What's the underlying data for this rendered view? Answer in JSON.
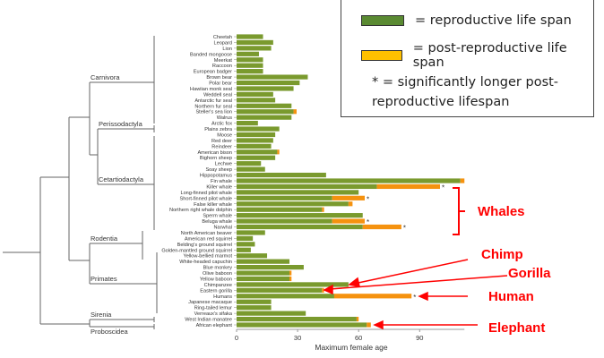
{
  "chart_data": {
    "type": "bar",
    "orientation": "horizontal",
    "stacked": true,
    "xlabel": "Maximum female age",
    "xlim": [
      0,
      112
    ],
    "xticks": [
      0,
      30,
      60,
      90
    ],
    "series": [
      {
        "name": "reproductive life span",
        "color": "#7a9a2e"
      },
      {
        "name": "post-reproductive life span",
        "color": "#f5920f"
      }
    ],
    "categories": [
      "Cheetah",
      "Leopard",
      "Lion",
      "Banded mongoose",
      "Meerkat",
      "Raccoon",
      "European badger",
      "Brown bear",
      "Polar bear",
      "Hawiian monk seal",
      "Weddell seal",
      "Antarctic fur seal",
      "Northern fur seal",
      "Steller's sea lion",
      "Walrus",
      "Arctic fox",
      "Plains zebra",
      "Moose",
      "Red deer",
      "Reindeer",
      "American bison",
      "Bighorn sheep",
      "Lechwe",
      "Soay sheep",
      "Hippopotamus",
      "Fin whale",
      "Killer whale",
      "Long-finned pilot whale",
      "Short-finned pilot whale",
      "False killer whale",
      "Northern right whale dolphin",
      "Sperm whale",
      "Beluga whale",
      "Narwhal",
      "North American beaver",
      "American red squirrel",
      "Belding's ground squirrel",
      "Golden-mantled ground squirrel",
      "Yellow-bellied marmot",
      "White-headed capuchin",
      "Blue monkey",
      "Olive baboon",
      "Yellow baboon",
      "Chimpanzee",
      "Eastern gorilla",
      "Humans",
      "Japanese macaque",
      "Ring-tailed lemur",
      "Verreaux's sifaka",
      "West Indian manatee",
      "African elephant"
    ],
    "reproductive": [
      13,
      18,
      17,
      11,
      13,
      13,
      13,
      35,
      31,
      28,
      18,
      19,
      27,
      28,
      27,
      10.5,
      21,
      19,
      18,
      17,
      20,
      19,
      12,
      14,
      44,
      110,
      69,
      60,
      47,
      55,
      42,
      62,
      47,
      62,
      14,
      8,
      9,
      7,
      15,
      26,
      33,
      26,
      26,
      55,
      42,
      48,
      17,
      17,
      34,
      59,
      64
    ],
    "post_reproductive": [
      0,
      0,
      0,
      0,
      0,
      0,
      0,
      0,
      0,
      0,
      0,
      0,
      0,
      1.5,
      0,
      0,
      0,
      0,
      0,
      0,
      1,
      0,
      0,
      0,
      0,
      2,
      31,
      0,
      16,
      2,
      1,
      0,
      16,
      19,
      0,
      0,
      0,
      0,
      0,
      0,
      0,
      1,
      1,
      0,
      1,
      38,
      0,
      0,
      0,
      1,
      2
    ],
    "significant": [
      26,
      28,
      32,
      33,
      45
    ],
    "clades": [
      "Carnivora",
      "Perissodactyla",
      "Cetartiodactyla",
      "Rodentia",
      "Primates",
      "Sirenia",
      "Proboscidea"
    ]
  },
  "legend": {
    "reproductive": "= reproductive life span",
    "post": "= post-reproductive life span",
    "note": "* = significantly longer post-reproductive lifespan",
    "star": "*"
  },
  "callouts": {
    "whales": "Whales",
    "chimp": "Chimp",
    "gorilla": "Gorilla",
    "human": "Human",
    "elephant": "Elephant"
  }
}
